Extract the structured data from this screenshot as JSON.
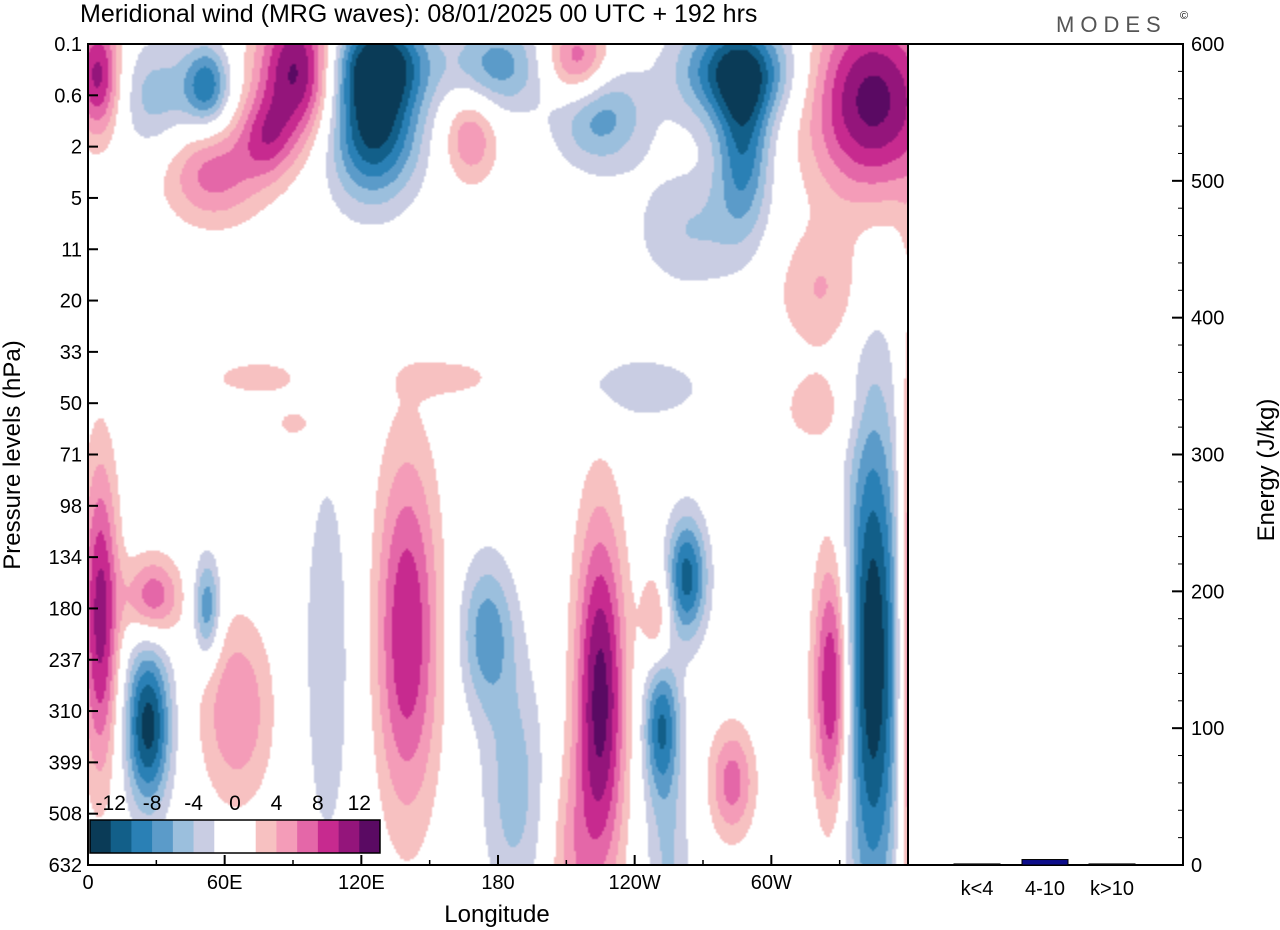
{
  "title": "Meridional wind (MRG waves):  08/01/2025  00 UTC  + 192 hrs",
  "brand": "MODES",
  "brand_mark": "©",
  "colors": {
    "negative": [
      "#0a3b57",
      "#125f89",
      "#2a80b5",
      "#5b9bc9",
      "#9bbfdd",
      "#c9cde3"
    ],
    "zero": "#ffffff",
    "positive": [
      "#f7c1c1",
      "#f49cb8",
      "#e467a8",
      "#c72a8f",
      "#94157b",
      "#5a0a63"
    ],
    "bar": "#0d0d8a"
  },
  "chart_data": [
    {
      "type": "heatmap",
      "name": "hovmoller",
      "xlabel": "Longitude",
      "ylabel": "Pressure levels (hPa)",
      "x_ticks": [
        "0",
        "60E",
        "120E",
        "180",
        "120W",
        "60W"
      ],
      "x_tick_values": [
        0,
        60,
        120,
        180,
        240,
        300
      ],
      "xlim": [
        0,
        360
      ],
      "y_ticks": [
        "0.1",
        "0.6",
        "2",
        "5",
        "11",
        "20",
        "33",
        "50",
        "71",
        "98",
        "134",
        "180",
        "237",
        "310",
        "399",
        "508",
        "632"
      ],
      "colorbar_labels": [
        "-12",
        "-8",
        "-4",
        "0",
        "4",
        "8",
        "12"
      ],
      "colorbar_levels": [
        -12,
        -10,
        -8,
        -6,
        -4,
        -2,
        2,
        4,
        6,
        8,
        10,
        12
      ],
      "features": [
        {
          "lon": 4,
          "level": 0.6,
          "lon_w": 10,
          "lev_h": 1.2,
          "value": 11
        },
        {
          "lon": 30,
          "level": 1.0,
          "lon_w": 18,
          "lev_h": 1.1,
          "value": -5
        },
        {
          "lon": 52,
          "level": 0.8,
          "lon_w": 10,
          "lev_h": 0.8,
          "value": -9
        },
        {
          "lon": 55,
          "level": 2.5,
          "lon_w": 22,
          "lev_h": 1.0,
          "value": 7
        },
        {
          "lon": 92,
          "level": 0.5,
          "lon_w": 18,
          "lev_h": 1.4,
          "value": 13
        },
        {
          "lon": 78,
          "level": 1.8,
          "lon_w": 12,
          "lev_h": 0.8,
          "value": 6
        },
        {
          "lon": 128,
          "level": 0.3,
          "lon_w": 22,
          "lev_h": 0.9,
          "value": -11
        },
        {
          "lon": 125,
          "level": 1.6,
          "lon_w": 20,
          "lev_h": 1.4,
          "value": -13
        },
        {
          "lon": 168,
          "level": 1.8,
          "lon_w": 12,
          "lev_h": 0.9,
          "value": 6
        },
        {
          "lon": 180,
          "level": 0.4,
          "lon_w": 20,
          "lev_h": 0.9,
          "value": -7
        },
        {
          "lon": 215,
          "level": 0.3,
          "lon_w": 14,
          "lev_h": 0.8,
          "value": 8
        },
        {
          "lon": 225,
          "level": 1.4,
          "lon_w": 20,
          "lev_h": 1.0,
          "value": -7
        },
        {
          "lon": 285,
          "level": 0.5,
          "lon_w": 25,
          "lev_h": 1.0,
          "value": -12
        },
        {
          "lon": 288,
          "level": 2.0,
          "lon_w": 12,
          "lev_h": 1.6,
          "value": -9
        },
        {
          "lon": 265,
          "level": 3.6,
          "lon_w": 25,
          "lev_h": 1.2,
          "value": -4
        },
        {
          "lon": 345,
          "level": 1.1,
          "lon_w": 28,
          "lev_h": 1.9,
          "value": 13
        },
        {
          "lon": 322,
          "level": 4.8,
          "lon_w": 20,
          "lev_h": 1.2,
          "value": 4
        },
        {
          "lon": 35,
          "level": 4.8,
          "lon_w": 25,
          "lev_h": 0.6,
          "value": -2
        },
        {
          "lon": 75,
          "level": 6.5,
          "lon_w": 25,
          "lev_h": 0.4,
          "value": 3
        },
        {
          "lon": 160,
          "level": 6.5,
          "lon_w": 22,
          "lev_h": 0.4,
          "value": 3
        },
        {
          "lon": 240,
          "level": 6.7,
          "lon_w": 40,
          "lev_h": 0.8,
          "value": -3
        },
        {
          "lon": 320,
          "level": 7.1,
          "lon_w": 18,
          "lev_h": 0.8,
          "value": 3
        },
        {
          "lon": 92,
          "level": 7.4,
          "lon_w": 12,
          "lev_h": 0.4,
          "value": 3
        },
        {
          "lon": 5,
          "level": 11.2,
          "lon_w": 8,
          "lev_h": 3.0,
          "value": 11
        },
        {
          "lon": 28,
          "level": 10.8,
          "lon_w": 12,
          "lev_h": 0.8,
          "value": 8
        },
        {
          "lon": 26,
          "level": 13.3,
          "lon_w": 10,
          "lev_h": 1.6,
          "value": -13
        },
        {
          "lon": 52,
          "level": 11.0,
          "lon_w": 6,
          "lev_h": 1.0,
          "value": -8
        },
        {
          "lon": 65,
          "level": 13.0,
          "lon_w": 16,
          "lev_h": 1.8,
          "value": 6
        },
        {
          "lon": 105,
          "level": 12.0,
          "lon_w": 14,
          "lev_h": 5.0,
          "value": -3
        },
        {
          "lon": 140,
          "level": 11.5,
          "lon_w": 14,
          "lev_h": 3.5,
          "value": 10
        },
        {
          "lon": 175,
          "level": 11.5,
          "lon_w": 12,
          "lev_h": 1.5,
          "value": -7
        },
        {
          "lon": 187,
          "level": 14.5,
          "lon_w": 14,
          "lev_h": 2.5,
          "value": -5
        },
        {
          "lon": 225,
          "level": 12.8,
          "lon_w": 11,
          "lev_h": 3.5,
          "value": 13
        },
        {
          "lon": 250,
          "level": 11.2,
          "lon_w": 7,
          "lev_h": 1.0,
          "value": 5
        },
        {
          "lon": 263,
          "level": 10.4,
          "lon_w": 9,
          "lev_h": 1.2,
          "value": -11
        },
        {
          "lon": 252,
          "level": 13.3,
          "lon_w": 8,
          "lev_h": 1.4,
          "value": -10
        },
        {
          "lon": 283,
          "level": 14.4,
          "lon_w": 10,
          "lev_h": 1.1,
          "value": 7
        },
        {
          "lon": 327,
          "level": 12.5,
          "lon_w": 8,
          "lev_h": 2.5,
          "value": 11
        },
        {
          "lon": 345,
          "level": 12.0,
          "lon_w": 12,
          "lev_h": 5.0,
          "value": -14
        },
        {
          "lon": 361,
          "level": 12.0,
          "lon_w": 5,
          "lev_h": 6.0,
          "value": 8
        },
        {
          "lon": 255,
          "level": 16.0,
          "lon_w": 10,
          "lev_h": 2.0,
          "value": -4
        },
        {
          "lon": 212,
          "level": 16.0,
          "lon_w": 10,
          "lev_h": 2.0,
          "value": 4
        }
      ]
    },
    {
      "type": "bar",
      "name": "energy",
      "ylabel": "Energy (J/kg)",
      "categories": [
        "k<4",
        "4-10",
        "k>10"
      ],
      "values": [
        0.8,
        4,
        0.8
      ],
      "ylim": [
        0,
        600
      ],
      "y_ticks": [
        0,
        100,
        200,
        300,
        400,
        500,
        600
      ]
    }
  ]
}
